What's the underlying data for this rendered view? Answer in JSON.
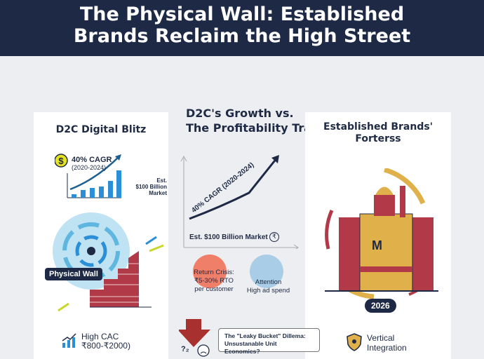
{
  "header": {
    "title_line1": "The Physical Wall: Established",
    "title_line2": "Brands Reclaim the High Street"
  },
  "left": {
    "title": "D2C Digital Blitz",
    "cagr": "40% CAGR",
    "years": "(2020-2024)",
    "market_l1": "Est.",
    "market_l2": "$100 Billion",
    "market_l3": "Market",
    "wall_label": "Physical Wall",
    "cac_l1": "High CAC",
    "cac_l2": "₹800-₹2000)"
  },
  "middle": {
    "title_l1": "D2C's Growth vs.",
    "title_l2": "The Profitability Trap",
    "curve_label": "40% CAGR (2020-2024)",
    "market": "Est. $100 Billion Market",
    "return_l1": "Return Crisis:",
    "return_l2": "₹5-30% RTO",
    "return_l3": "per customer",
    "attention_l1": "Attention",
    "attention_l2": "High ad spend",
    "dilemma_l1": "The \"Leaky Bucket\" Dillema:",
    "dilemma_l2": "Unsustanable Unit Economics?",
    "question": "?₂"
  },
  "right": {
    "title_l1": "Established Brands'",
    "title_l2": "Forterss",
    "emblem": "M",
    "year": "2026",
    "integration_l1": "Vertical",
    "integration_l2": "Integration"
  },
  "colors": {
    "navy": "#1e2a45",
    "brick": "#b23a48",
    "gold": "#e0b04a",
    "blue": "#2a8fd6"
  }
}
